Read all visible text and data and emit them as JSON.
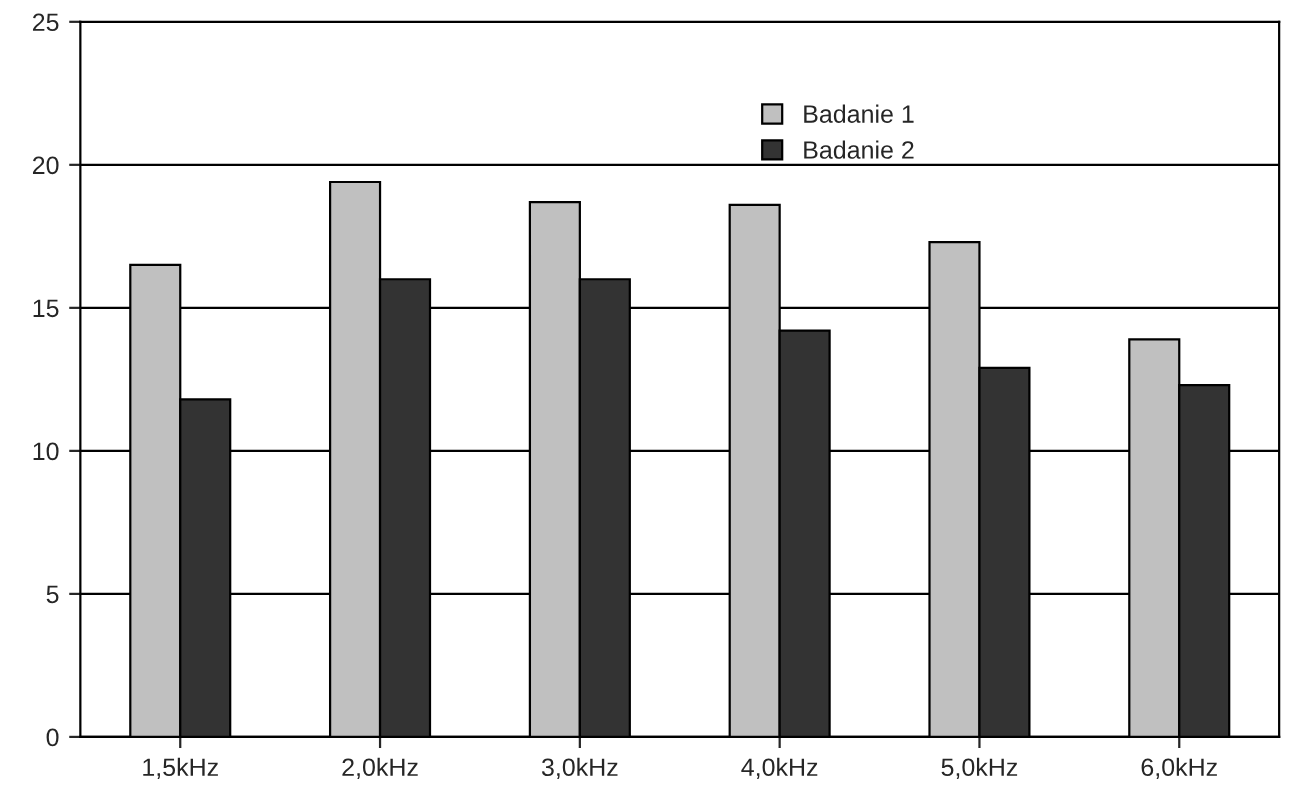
{
  "chart_data": {
    "type": "bar",
    "categories": [
      "1,5kHz",
      "2,0kHz",
      "3,0kHz",
      "4,0kHz",
      "5,0kHz",
      "6,0kHz"
    ],
    "series": [
      {
        "name": "Badanie 1",
        "color": "#c0c0c0",
        "values": [
          16.5,
          19.4,
          18.7,
          18.6,
          17.3,
          13.9
        ]
      },
      {
        "name": "Badanie 2",
        "color": "#333333",
        "values": [
          11.8,
          16.0,
          16.0,
          14.2,
          12.9,
          12.3
        ]
      }
    ],
    "ylim": [
      0,
      25
    ],
    "yticks": [
      0,
      5,
      10,
      15,
      20,
      25
    ],
    "grid": "y",
    "legend": "top"
  }
}
